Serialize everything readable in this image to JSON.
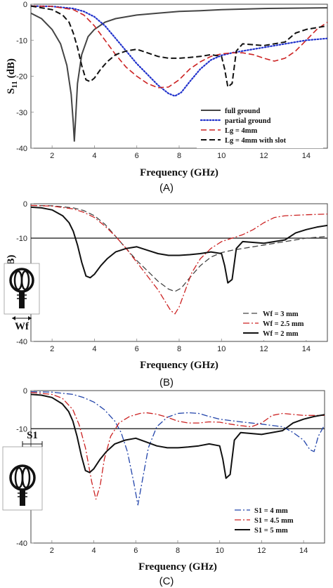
{
  "chart_data": [
    {
      "type": "line",
      "caption": "(A)",
      "xlabel": "Frequency (GHz)",
      "ylabel_main": "S",
      "ylabel_sub": "11",
      "ylabel_unit": " (dB)",
      "xlim": [
        1,
        15
      ],
      "ylim": [
        -40,
        0
      ],
      "xticks": [
        2,
        4,
        6,
        8,
        10,
        12,
        14
      ],
      "yticks": [
        0,
        -10,
        -20,
        -30,
        -40
      ],
      "legend_position": "bottom-right",
      "series": [
        {
          "name": "full ground",
          "color": "#444444",
          "dash": "solid",
          "width": 2,
          "x": [
            1,
            1.5,
            2,
            2.4,
            2.7,
            2.9,
            3.0,
            3.05,
            3.1,
            3.2,
            3.4,
            3.7,
            4,
            4.5,
            5,
            6,
            7,
            8,
            9,
            10,
            12,
            15
          ],
          "y": [
            -2.5,
            -4,
            -7,
            -11,
            -17,
            -25,
            -33,
            -38,
            -33,
            -22,
            -14,
            -9,
            -7,
            -5,
            -4,
            -3,
            -2.5,
            -2,
            -1.8,
            -1.5,
            -1.2,
            -1
          ]
        },
        {
          "name": "partial ground",
          "color": "#2233cc",
          "dash": "dot",
          "width": 2.2,
          "x": [
            1,
            2,
            3,
            3.5,
            4,
            4.5,
            5,
            5.5,
            6,
            6.5,
            7,
            7.5,
            7.8,
            8.1,
            8.5,
            9,
            9.5,
            10,
            10.5,
            11,
            12,
            13,
            14,
            15
          ],
          "y": [
            -0.5,
            -0.6,
            -1.2,
            -2,
            -3.5,
            -6,
            -9.5,
            -13,
            -16.5,
            -19.5,
            -22.5,
            -24.8,
            -25.5,
            -24.5,
            -21.5,
            -18,
            -15.5,
            -14.2,
            -13.5,
            -13,
            -12,
            -11,
            -10,
            -9.5
          ]
        },
        {
          "name": "Lg = 4mm",
          "color": "#cc2222",
          "dash": "dash",
          "width": 1.6,
          "x": [
            1,
            2,
            3,
            3.5,
            4,
            4.5,
            5,
            5.5,
            6,
            6.5,
            7,
            7.5,
            8,
            8.5,
            9,
            9.5,
            10,
            10.5,
            11,
            11.5,
            12,
            12.5,
            13,
            13.5,
            14,
            14.5,
            15
          ],
          "y": [
            -0.5,
            -0.6,
            -1.5,
            -3,
            -6,
            -10,
            -14,
            -17.5,
            -20,
            -22,
            -23.2,
            -23,
            -21,
            -18,
            -16,
            -14.5,
            -13.8,
            -13.5,
            -13.5,
            -14,
            -15,
            -15.8,
            -15,
            -13,
            -10,
            -7,
            -5
          ]
        },
        {
          "name": "Lg = 4mm with slot",
          "color": "#111111",
          "dash": "dash",
          "width": 2,
          "x": [
            1,
            1.5,
            2,
            2.5,
            2.8,
            3,
            3.2,
            3.4,
            3.6,
            3.8,
            4,
            4.3,
            4.6,
            5,
            5.5,
            6,
            6.5,
            7,
            7.5,
            8,
            8.5,
            9,
            9.5,
            10,
            10.15,
            10.3,
            10.5,
            10.7,
            11,
            12,
            13,
            13.5,
            14,
            14.5,
            15
          ],
          "y": [
            -0.5,
            -1,
            -1.5,
            -3,
            -5,
            -8,
            -12,
            -17,
            -21,
            -21.5,
            -20.5,
            -18,
            -16,
            -14,
            -13,
            -12.5,
            -13.5,
            -14.5,
            -15,
            -15,
            -14.8,
            -14.5,
            -14,
            -14.5,
            -18,
            -23,
            -22,
            -13,
            -11,
            -11.5,
            -10.5,
            -8,
            -7,
            -6.5,
            -6
          ]
        }
      ]
    },
    {
      "type": "line",
      "caption": "(B)",
      "xlabel": "Frequency (GHz)",
      "ylabel_main": "S",
      "ylabel_sub": "11",
      "ylabel_unit": " (dB)",
      "xlim": [
        1,
        15
      ],
      "ylim": [
        -40,
        0
      ],
      "xticks": [
        2,
        4,
        6,
        8,
        10,
        12,
        14
      ],
      "yticks": [
        0,
        -10,
        -20,
        -30,
        -40
      ],
      "reference_line": -10,
      "legend_position": "bottom-right",
      "inset_label": "Wf",
      "series": [
        {
          "name": "Wf = 3 mm",
          "color": "#444444",
          "dash": "dash",
          "width": 1.3,
          "x": [
            1,
            2,
            3,
            3.5,
            4,
            4.5,
            5,
            5.5,
            6,
            6.5,
            7,
            7.5,
            7.8,
            8.1,
            8.5,
            9,
            9.5,
            10,
            10.5,
            11,
            12,
            13,
            14,
            15
          ],
          "y": [
            -0.5,
            -0.6,
            -1.2,
            -2,
            -3.5,
            -6,
            -9.5,
            -13,
            -16.5,
            -19.5,
            -22.5,
            -24.8,
            -25.5,
            -24.5,
            -21.5,
            -18,
            -15.5,
            -14.2,
            -13.5,
            -13,
            -12,
            -11,
            -10,
            -9.5
          ]
        },
        {
          "name": "Wf = 2.5 mm",
          "color": "#cc2222",
          "dash": "dashdot",
          "width": 1.3,
          "x": [
            1,
            2,
            3,
            3.5,
            4,
            4.5,
            5,
            5.5,
            6,
            6.5,
            7,
            7.3,
            7.6,
            7.8,
            8,
            8.3,
            8.6,
            9,
            9.5,
            10,
            10.5,
            11,
            11.5,
            12,
            12.5,
            13,
            14,
            15
          ],
          "y": [
            -0.5,
            -0.7,
            -1.5,
            -2.5,
            -4,
            -6.5,
            -9.5,
            -13,
            -17,
            -21,
            -25,
            -28,
            -31,
            -32,
            -30,
            -25,
            -20,
            -16,
            -13,
            -11,
            -10,
            -9,
            -7.5,
            -5.5,
            -4,
            -3.5,
            -3.2,
            -3
          ]
        },
        {
          "name": "Wf = 2 mm",
          "color": "#111111",
          "dash": "solid",
          "width": 2,
          "x": [
            1,
            1.5,
            2,
            2.5,
            2.8,
            3,
            3.2,
            3.4,
            3.6,
            3.8,
            4,
            4.3,
            4.6,
            5,
            5.5,
            6,
            6.5,
            7,
            7.5,
            8,
            8.5,
            9,
            9.5,
            10,
            10.15,
            10.3,
            10.5,
            10.7,
            11,
            12,
            13,
            13.5,
            14,
            14.5,
            15
          ],
          "y": [
            -1,
            -1.2,
            -1.8,
            -3.5,
            -5.5,
            -8,
            -12,
            -17,
            -21,
            -21.5,
            -20.5,
            -18,
            -16,
            -14,
            -13,
            -12.5,
            -13.5,
            -14.5,
            -15,
            -15,
            -14.8,
            -14.5,
            -14,
            -14.5,
            -18,
            -23,
            -22,
            -13,
            -11,
            -11.5,
            -10.5,
            -8.5,
            -7.5,
            -6.8,
            -6.3
          ]
        }
      ]
    },
    {
      "type": "line",
      "caption": "(C)",
      "xlabel": "Frequency (GHz)",
      "ylabel_main": "S",
      "ylabel_sub": "11",
      "ylabel_unit": " (dB)",
      "xlim": [
        1,
        15
      ],
      "ylim": [
        -40,
        0
      ],
      "xticks": [
        2,
        4,
        6,
        8,
        10,
        12,
        14
      ],
      "yticks": [
        0,
        -10,
        -20,
        -30,
        -40
      ],
      "reference_line": -10,
      "legend_position": "bottom-right",
      "inset_label": "S1",
      "series": [
        {
          "name": "S1 = 4 mm",
          "color": "#2244aa",
          "dash": "dashdot",
          "width": 1.3,
          "x": [
            1,
            2,
            3,
            3.5,
            4,
            4.5,
            5,
            5.3,
            5.6,
            5.9,
            6.1,
            6.3,
            6.6,
            7,
            7.5,
            8,
            8.5,
            9,
            9.5,
            10,
            11,
            12,
            13,
            13.5,
            14,
            14.3,
            14.5,
            14.7,
            15
          ],
          "y": [
            -0.3,
            -0.4,
            -1,
            -1.8,
            -3,
            -5,
            -8,
            -11,
            -16,
            -24,
            -30,
            -24,
            -15,
            -9.5,
            -7,
            -6,
            -5.8,
            -6,
            -6.8,
            -7.5,
            -8.2,
            -8.8,
            -9.5,
            -11,
            -13,
            -15.5,
            -16,
            -12,
            -9
          ]
        },
        {
          "name": "S1 = 4.5 mm",
          "color": "#cc2222",
          "dash": "dashdot",
          "width": 1.3,
          "x": [
            1,
            2,
            2.5,
            3,
            3.3,
            3.6,
            3.9,
            4.1,
            4.3,
            4.5,
            4.8,
            5.2,
            5.7,
            6.2,
            6.5,
            7,
            7.5,
            8,
            8.5,
            9,
            9.5,
            10,
            10.5,
            11,
            11.5,
            12,
            12.5,
            13,
            14,
            15
          ],
          "y": [
            -0.5,
            -1,
            -2,
            -5,
            -9,
            -15,
            -24,
            -28.5,
            -25,
            -18,
            -12,
            -8.5,
            -6.8,
            -6,
            -5.8,
            -6.2,
            -7,
            -8,
            -8.5,
            -8.5,
            -8.2,
            -8.3,
            -8.8,
            -9.2,
            -9.5,
            -8.5,
            -6.5,
            -6,
            -6.5,
            -6.5
          ]
        },
        {
          "name": "S1 = 5 mm",
          "color": "#111111",
          "dash": "solid",
          "width": 2,
          "x": [
            1,
            1.5,
            2,
            2.5,
            2.8,
            3,
            3.2,
            3.4,
            3.6,
            3.8,
            4,
            4.3,
            4.6,
            5,
            5.5,
            6,
            6.5,
            7,
            7.5,
            8,
            8.5,
            9,
            9.5,
            10,
            10.15,
            10.3,
            10.5,
            10.7,
            11,
            12,
            13,
            13.5,
            14,
            14.5,
            15
          ],
          "y": [
            -1,
            -1.2,
            -1.8,
            -3.5,
            -5.5,
            -8,
            -12,
            -17,
            -21,
            -21.5,
            -20.5,
            -18,
            -16,
            -14,
            -13,
            -12.5,
            -13.5,
            -14.5,
            -15,
            -15,
            -14.8,
            -14.5,
            -14,
            -14.5,
            -18,
            -23,
            -22,
            -13,
            -11,
            -11.5,
            -10.5,
            -8.5,
            -7.5,
            -6.8,
            -6.3
          ]
        }
      ]
    }
  ]
}
